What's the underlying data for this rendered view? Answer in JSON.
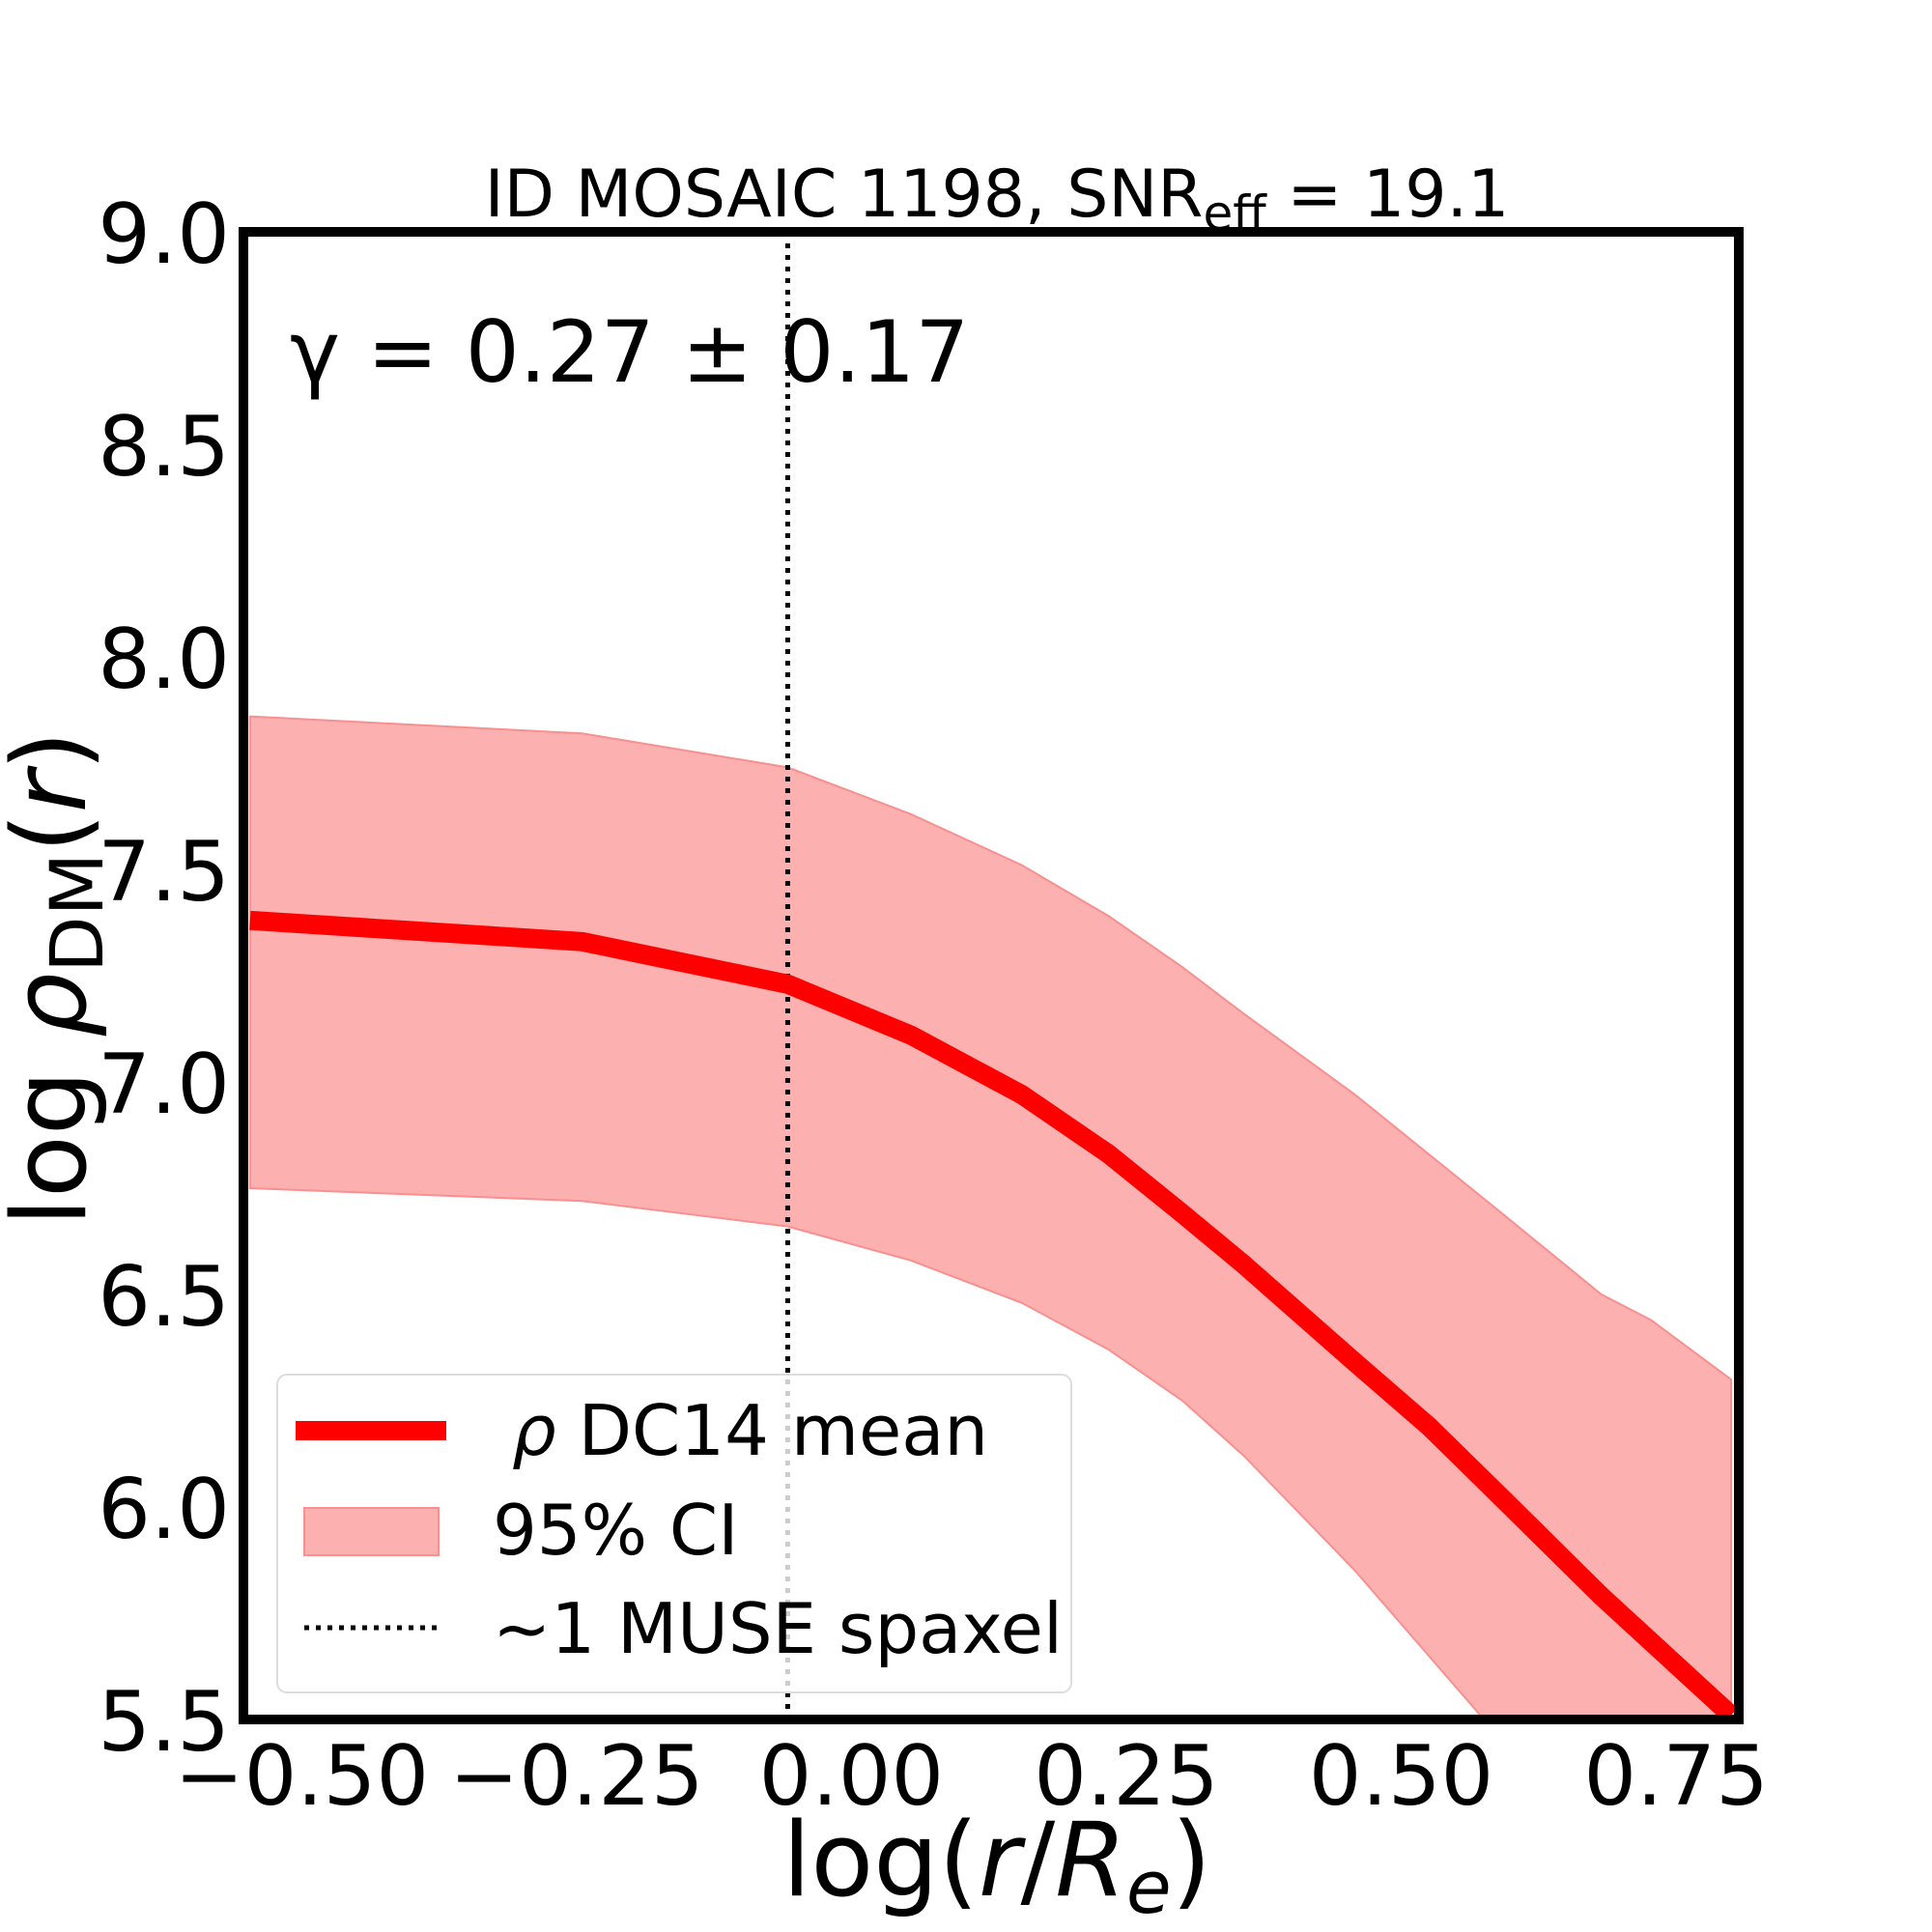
{
  "chart_data": {
    "type": "line",
    "title": "ID MOSAIC 1198, SNR_eff = 19.1",
    "title_parts": {
      "main": "ID MOSAIC 1198, SNR",
      "sub": "eff",
      "rest": " = 19.1"
    },
    "xlabel": "log(r/R_e)",
    "xlabel_parts": {
      "pre": "log(",
      "r": "r",
      "slash": "/",
      "R": "R",
      "sub": "e",
      "post": ")"
    },
    "ylabel": "log ρ_DM(r)",
    "ylabel_parts": {
      "pre": "log ",
      "rho": "ρ",
      "sub": "DM",
      "post": "(",
      "r": "r",
      "close": ")"
    },
    "xlim": [
      -0.56,
      0.8
    ],
    "ylim": [
      5.5,
      9.0
    ],
    "xticks": [
      -0.5,
      -0.25,
      0.0,
      0.25,
      0.5,
      0.75
    ],
    "xtick_labels": [
      "−0.50",
      "−0.25",
      "0.00",
      "0.25",
      "0.50",
      "0.75"
    ],
    "yticks": [
      5.5,
      6.0,
      6.5,
      7.0,
      7.5,
      8.0,
      8.5,
      9.0
    ],
    "ytick_labels": [
      "5.5",
      "6.0",
      "6.5",
      "7.0",
      "7.5",
      "8.0",
      "8.5",
      "9.0"
    ],
    "grid": false,
    "legend_placement": "lower-left",
    "annotation": "γ = 0.27 ± 0.17",
    "colors": {
      "mean": "#ff0000",
      "band": "#fdb0b0",
      "band_edge": "#f89090",
      "spaxel": "#000000"
    },
    "series": [
      {
        "name": "ρ DC14 mean",
        "type": "line",
        "x": [
          -0.554,
          -0.252,
          -0.065,
          0.047,
          0.148,
          0.227,
          0.294,
          0.35,
          0.451,
          0.518,
          0.585,
          0.675,
          0.793
        ],
        "y": [
          7.38,
          7.33,
          7.23,
          7.11,
          6.97,
          6.83,
          6.69,
          6.57,
          6.34,
          6.19,
          6.02,
          5.79,
          5.51
        ]
      },
      {
        "name": "95% CI",
        "type": "band",
        "x": [
          -0.554,
          -0.252,
          -0.065,
          0.047,
          0.148,
          0.227,
          0.294,
          0.35,
          0.451,
          0.518,
          0.585,
          0.675,
          0.72,
          0.793
        ],
        "upper": [
          7.86,
          7.82,
          7.74,
          7.63,
          7.51,
          7.39,
          7.27,
          7.16,
          6.97,
          6.83,
          6.69,
          6.5,
          6.44,
          6.3
        ],
        "lower": [
          6.75,
          6.72,
          6.66,
          6.58,
          6.48,
          6.37,
          6.25,
          6.12,
          5.85,
          5.65,
          5.45,
          5.2,
          5.05,
          4.85
        ]
      },
      {
        "name": "~1 MUSE spaxel",
        "type": "vline",
        "x": -0.065
      }
    ],
    "legend": [
      {
        "label": "DC14 mean",
        "symbol": "ρ"
      },
      {
        "label": "95% CI"
      },
      {
        "label": "~1 MUSE spaxel"
      }
    ]
  }
}
